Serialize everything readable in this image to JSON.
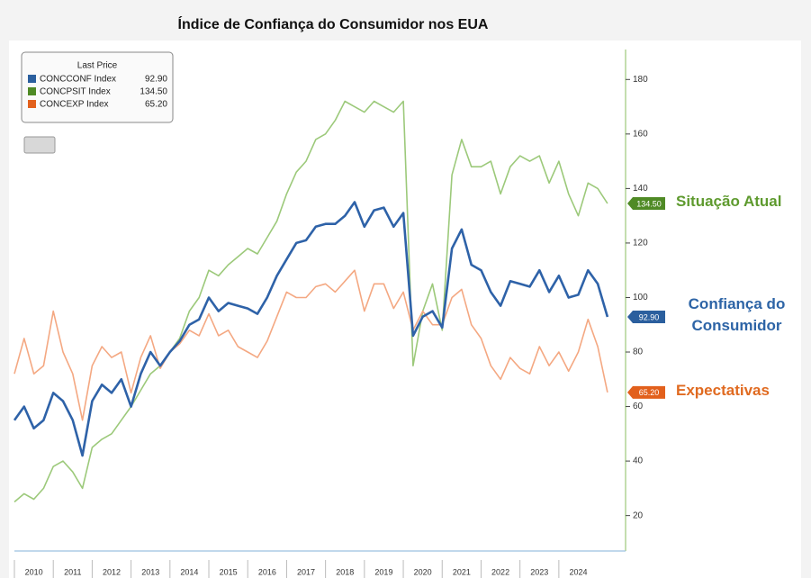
{
  "chart_data": {
    "type": "line",
    "title": "Índice de Confiança do Consumidor nos EUA",
    "legend_title": "Last Price",
    "legend": "upper left",
    "x": [
      2010,
      2010.25,
      2010.5,
      2010.75,
      2011,
      2011.25,
      2011.5,
      2011.75,
      2012,
      2012.25,
      2012.5,
      2012.75,
      2013,
      2013.25,
      2013.5,
      2013.75,
      2014,
      2014.25,
      2014.5,
      2014.75,
      2015,
      2015.25,
      2015.5,
      2015.75,
      2016,
      2016.25,
      2016.5,
      2016.75,
      2017,
      2017.25,
      2017.5,
      2017.75,
      2018,
      2018.25,
      2018.5,
      2018.75,
      2019,
      2019.25,
      2019.5,
      2019.75,
      2020,
      2020.25,
      2020.5,
      2020.75,
      2021,
      2021.25,
      2021.5,
      2021.75,
      2022,
      2022.25,
      2022.5,
      2022.75,
      2023,
      2023.25,
      2023.5,
      2023.75,
      2024,
      2024.25,
      2024.5,
      2024.75,
      2025,
      2025.25
    ],
    "xlim": [
      2010,
      2025.6
    ],
    "xticks": [
      2010,
      2011,
      2012,
      2013,
      2014,
      2015,
      2016,
      2017,
      2018,
      2019,
      2020,
      2021,
      2022,
      2023,
      2024
    ],
    "ylim": [
      7,
      191
    ],
    "yticks": [
      20,
      40,
      60,
      80,
      100,
      120,
      140,
      160,
      180
    ],
    "series": [
      {
        "name": "CONCCONF Index",
        "color": "#2e62a8",
        "width": 2.6,
        "tag_color": "#2b5f9e",
        "text_color": "#2d64a6",
        "last_price": {
          "value": 92.9,
          "label": "92.90"
        },
        "annotation": "Confiança do Consumidor",
        "values": [
          55,
          60,
          52,
          55,
          65,
          62,
          55,
          42,
          62,
          68,
          65,
          70,
          60,
          72,
          80,
          75,
          80,
          84,
          90,
          92,
          100,
          95,
          98,
          97,
          96,
          94,
          100,
          108,
          114,
          120,
          121,
          126,
          127,
          127,
          130,
          135,
          126,
          132,
          133,
          126,
          131,
          86,
          93,
          95,
          89,
          118,
          125,
          112,
          110,
          102,
          97,
          106,
          105,
          104,
          110,
          102,
          108,
          100,
          101,
          110,
          105,
          92.9
        ]
      },
      {
        "name": "CONCPSIT Index",
        "color": "#9cc97a",
        "width": 1.6,
        "tag_color": "#4f8a25",
        "text_color": "#5e9a2e",
        "last_price": {
          "value": 134.5,
          "label": "134.50"
        },
        "annotation": "Situação Atual",
        "values": [
          25,
          28,
          26,
          30,
          38,
          40,
          36,
          30,
          45,
          48,
          50,
          55,
          60,
          66,
          72,
          75,
          80,
          85,
          95,
          100,
          110,
          108,
          112,
          115,
          118,
          116,
          122,
          128,
          138,
          146,
          150,
          158,
          160,
          165,
          172,
          170,
          168,
          172,
          170,
          168,
          172,
          75,
          95,
          105,
          88,
          145,
          158,
          148,
          148,
          150,
          138,
          148,
          152,
          150,
          152,
          142,
          150,
          138,
          130,
          142,
          140,
          134.5
        ]
      },
      {
        "name": "CONCEXP Index",
        "color": "#f4a882",
        "width": 1.6,
        "tag_color": "#e2601c",
        "text_color": "#e06a20",
        "last_price": {
          "value": 65.2,
          "label": "65.20"
        },
        "annotation": "Expectativas",
        "values": [
          72,
          85,
          72,
          75,
          95,
          80,
          72,
          55,
          75,
          82,
          78,
          80,
          65,
          78,
          86,
          74,
          80,
          83,
          88,
          86,
          94,
          86,
          88,
          82,
          80,
          78,
          84,
          93,
          102,
          100,
          100,
          104,
          105,
          102,
          106,
          110,
          95,
          105,
          105,
          96,
          102,
          88,
          95,
          90,
          90,
          100,
          103,
          90,
          85,
          75,
          70,
          78,
          74,
          72,
          82,
          75,
          80,
          73,
          80,
          92,
          82,
          65.2
        ]
      }
    ]
  }
}
